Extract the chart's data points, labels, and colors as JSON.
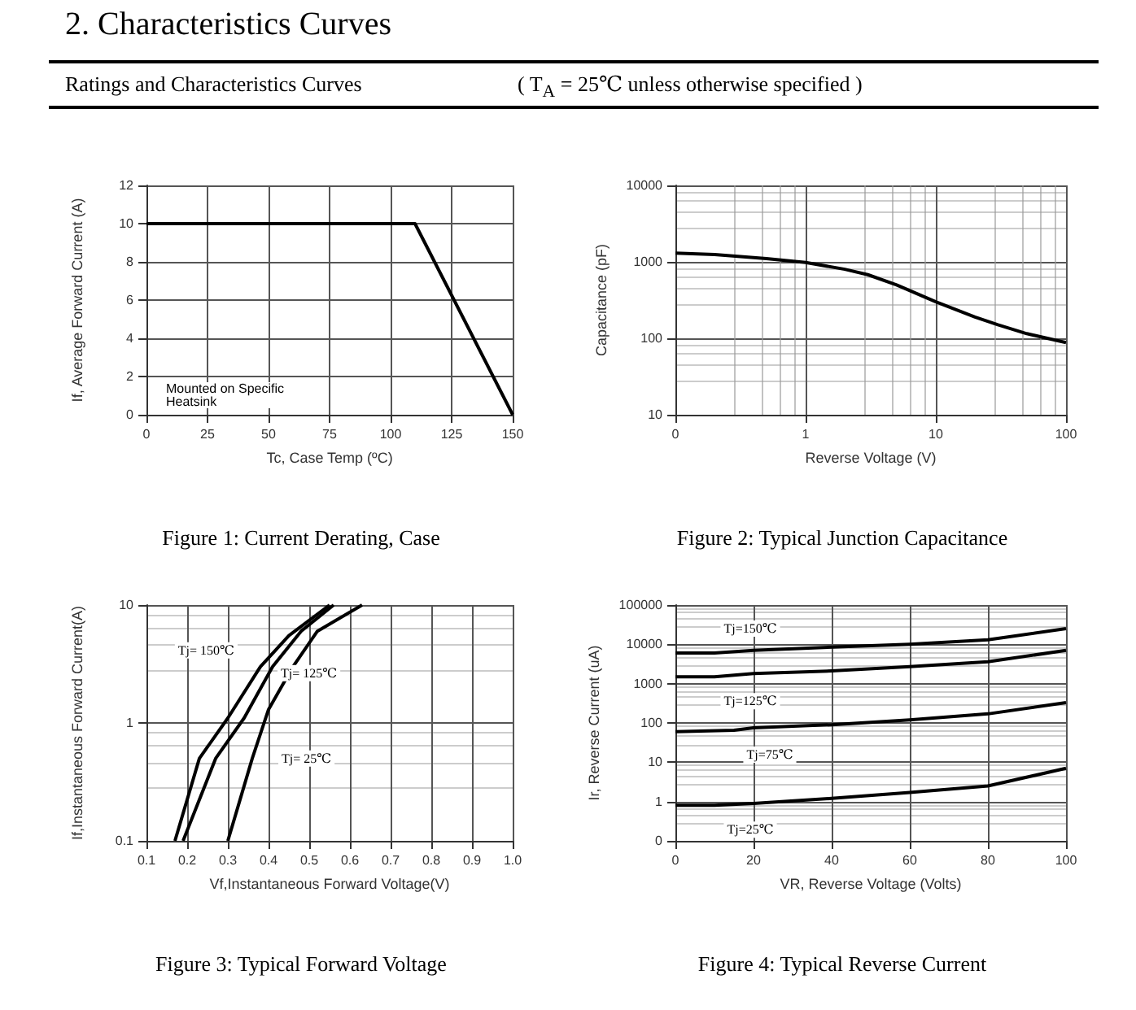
{
  "chart_data": [
    {
      "type": "other",
      "title": "2. Characteristics Curves",
      "subtitle": "Ratings and Characteristics Curves",
      "annotations": [
        "( T$_{A}$ = 25℃  unless otherwise specified )"
      ]
    },
    {
      "type": "line",
      "title": "Figure 1: Current Derating, Case",
      "xlabel": "Tc, Case Temp (ºC)",
      "ylabel": "If, Average Forward Current (A)",
      "annotations": [
        "Mounted on Specific\nHeatsink"
      ],
      "xlim": [
        0,
        150
      ],
      "xticks": [
        0,
        25,
        50,
        75,
        100,
        125,
        150
      ],
      "ylim": [
        0,
        12
      ],
      "yticks": [
        0,
        2,
        4,
        6,
        8,
        10,
        12
      ],
      "grid": true,
      "marker": "none",
      "line_style": "solid",
      "series": [
        {
          "color": "#000000",
          "x": [
            0,
            110,
            150
          ],
          "values": [
            10,
            10,
            0
          ]
        }
      ]
    },
    {
      "type": "line",
      "title": "Figure 2: Typical Junction Capacitance",
      "xlabel": "Reverse Voltage (V)",
      "ylabel": "Capacitance (pF)",
      "log": "xy",
      "xlim": [
        0.1,
        100
      ],
      "xticks": [
        {
          "value": 0.1,
          "label": "0"
        },
        1,
        10,
        100
      ],
      "ylim": [
        10,
        10000
      ],
      "yticks": [
        10,
        100,
        1000,
        10000
      ],
      "grid": true,
      "marker": "none",
      "line_style": "solid",
      "series": [
        {
          "color": "#000000",
          "x": [
            0.1,
            0.2,
            0.5,
            1,
            2,
            3,
            5,
            10,
            20,
            30,
            50,
            100
          ],
          "values": [
            1300,
            1250,
            1100,
            980,
            800,
            680,
            500,
            300,
            190,
            150,
            115,
            88
          ]
        }
      ]
    },
    {
      "type": "line",
      "title": "Figure 3: Typical Forward Voltage",
      "xlabel": "Vf,Instantaneous Forward Voltage(V)",
      "ylabel": "If,Instantaneous Forward Current(A)",
      "log": "y",
      "xlim": [
        0.1,
        1
      ],
      "xticks": [
        0.1,
        0.2,
        0.3,
        0.4,
        0.5,
        0.6,
        0.7,
        0.8,
        0.9,
        {
          "value": 1,
          "label": "1.0"
        }
      ],
      "ylim": [
        0.1,
        10
      ],
      "yticks": [
        0.1,
        1,
        10
      ],
      "grid": true,
      "marker": "none",
      "line_style": "solid",
      "series": [
        {
          "name": "Tj= 150℃",
          "color": "#000000",
          "x": [
            0.17,
            0.23,
            0.3,
            0.38,
            0.45,
            0.55
          ],
          "values": [
            0.1,
            0.5,
            1.1,
            3,
            5.5,
            10
          ]
        },
        {
          "name": "Tj= 125℃",
          "color": "#000000",
          "x": [
            0.19,
            0.27,
            0.34,
            0.41,
            0.48,
            0.56
          ],
          "values": [
            0.1,
            0.5,
            1.1,
            3,
            6,
            10
          ]
        },
        {
          "name": "Tj= 25℃",
          "color": "#000000",
          "x": [
            0.3,
            0.36,
            0.4,
            0.46,
            0.52,
            0.63
          ],
          "values": [
            0.1,
            0.5,
            1.3,
            3,
            6,
            10
          ]
        }
      ]
    },
    {
      "type": "line",
      "title": "Figure 4: Typical Reverse Current",
      "xlabel": "VR, Reverse Voltage (Volts)",
      "ylabel": "Ir, Reverse Current (uA)",
      "log": "y",
      "xlim": [
        0,
        100
      ],
      "xticks": [
        0,
        20,
        40,
        60,
        80,
        100
      ],
      "ylim": [
        0.1,
        100000
      ],
      "yticks": [
        {
          "value": 0.1,
          "label": "0"
        },
        1,
        10,
        100,
        1000,
        10000,
        100000
      ],
      "grid": true,
      "marker": "none",
      "line_style": "solid",
      "series": [
        {
          "name": "Tj=150℃",
          "color": "#000000",
          "x": [
            0,
            10,
            20,
            40,
            60,
            80,
            100
          ],
          "values": [
            6000,
            6000,
            7000,
            8500,
            10000,
            13000,
            25000
          ]
        },
        {
          "name": "Tj=125℃",
          "color": "#000000",
          "x": [
            0,
            10,
            20,
            40,
            60,
            80,
            100
          ],
          "values": [
            1500,
            1500,
            1800,
            2100,
            2700,
            3600,
            7000
          ]
        },
        {
          "name": "Tj=75℃",
          "color": "#000000",
          "x": [
            0,
            15,
            20,
            40,
            60,
            80,
            100
          ],
          "values": [
            60,
            65,
            75,
            90,
            120,
            170,
            330
          ]
        },
        {
          "name": "Tj=25℃",
          "color": "#000000",
          "x": [
            0,
            10,
            20,
            40,
            60,
            80,
            100
          ],
          "values": [
            0.8,
            0.8,
            0.9,
            1.2,
            1.7,
            2.5,
            7
          ]
        }
      ]
    }
  ]
}
